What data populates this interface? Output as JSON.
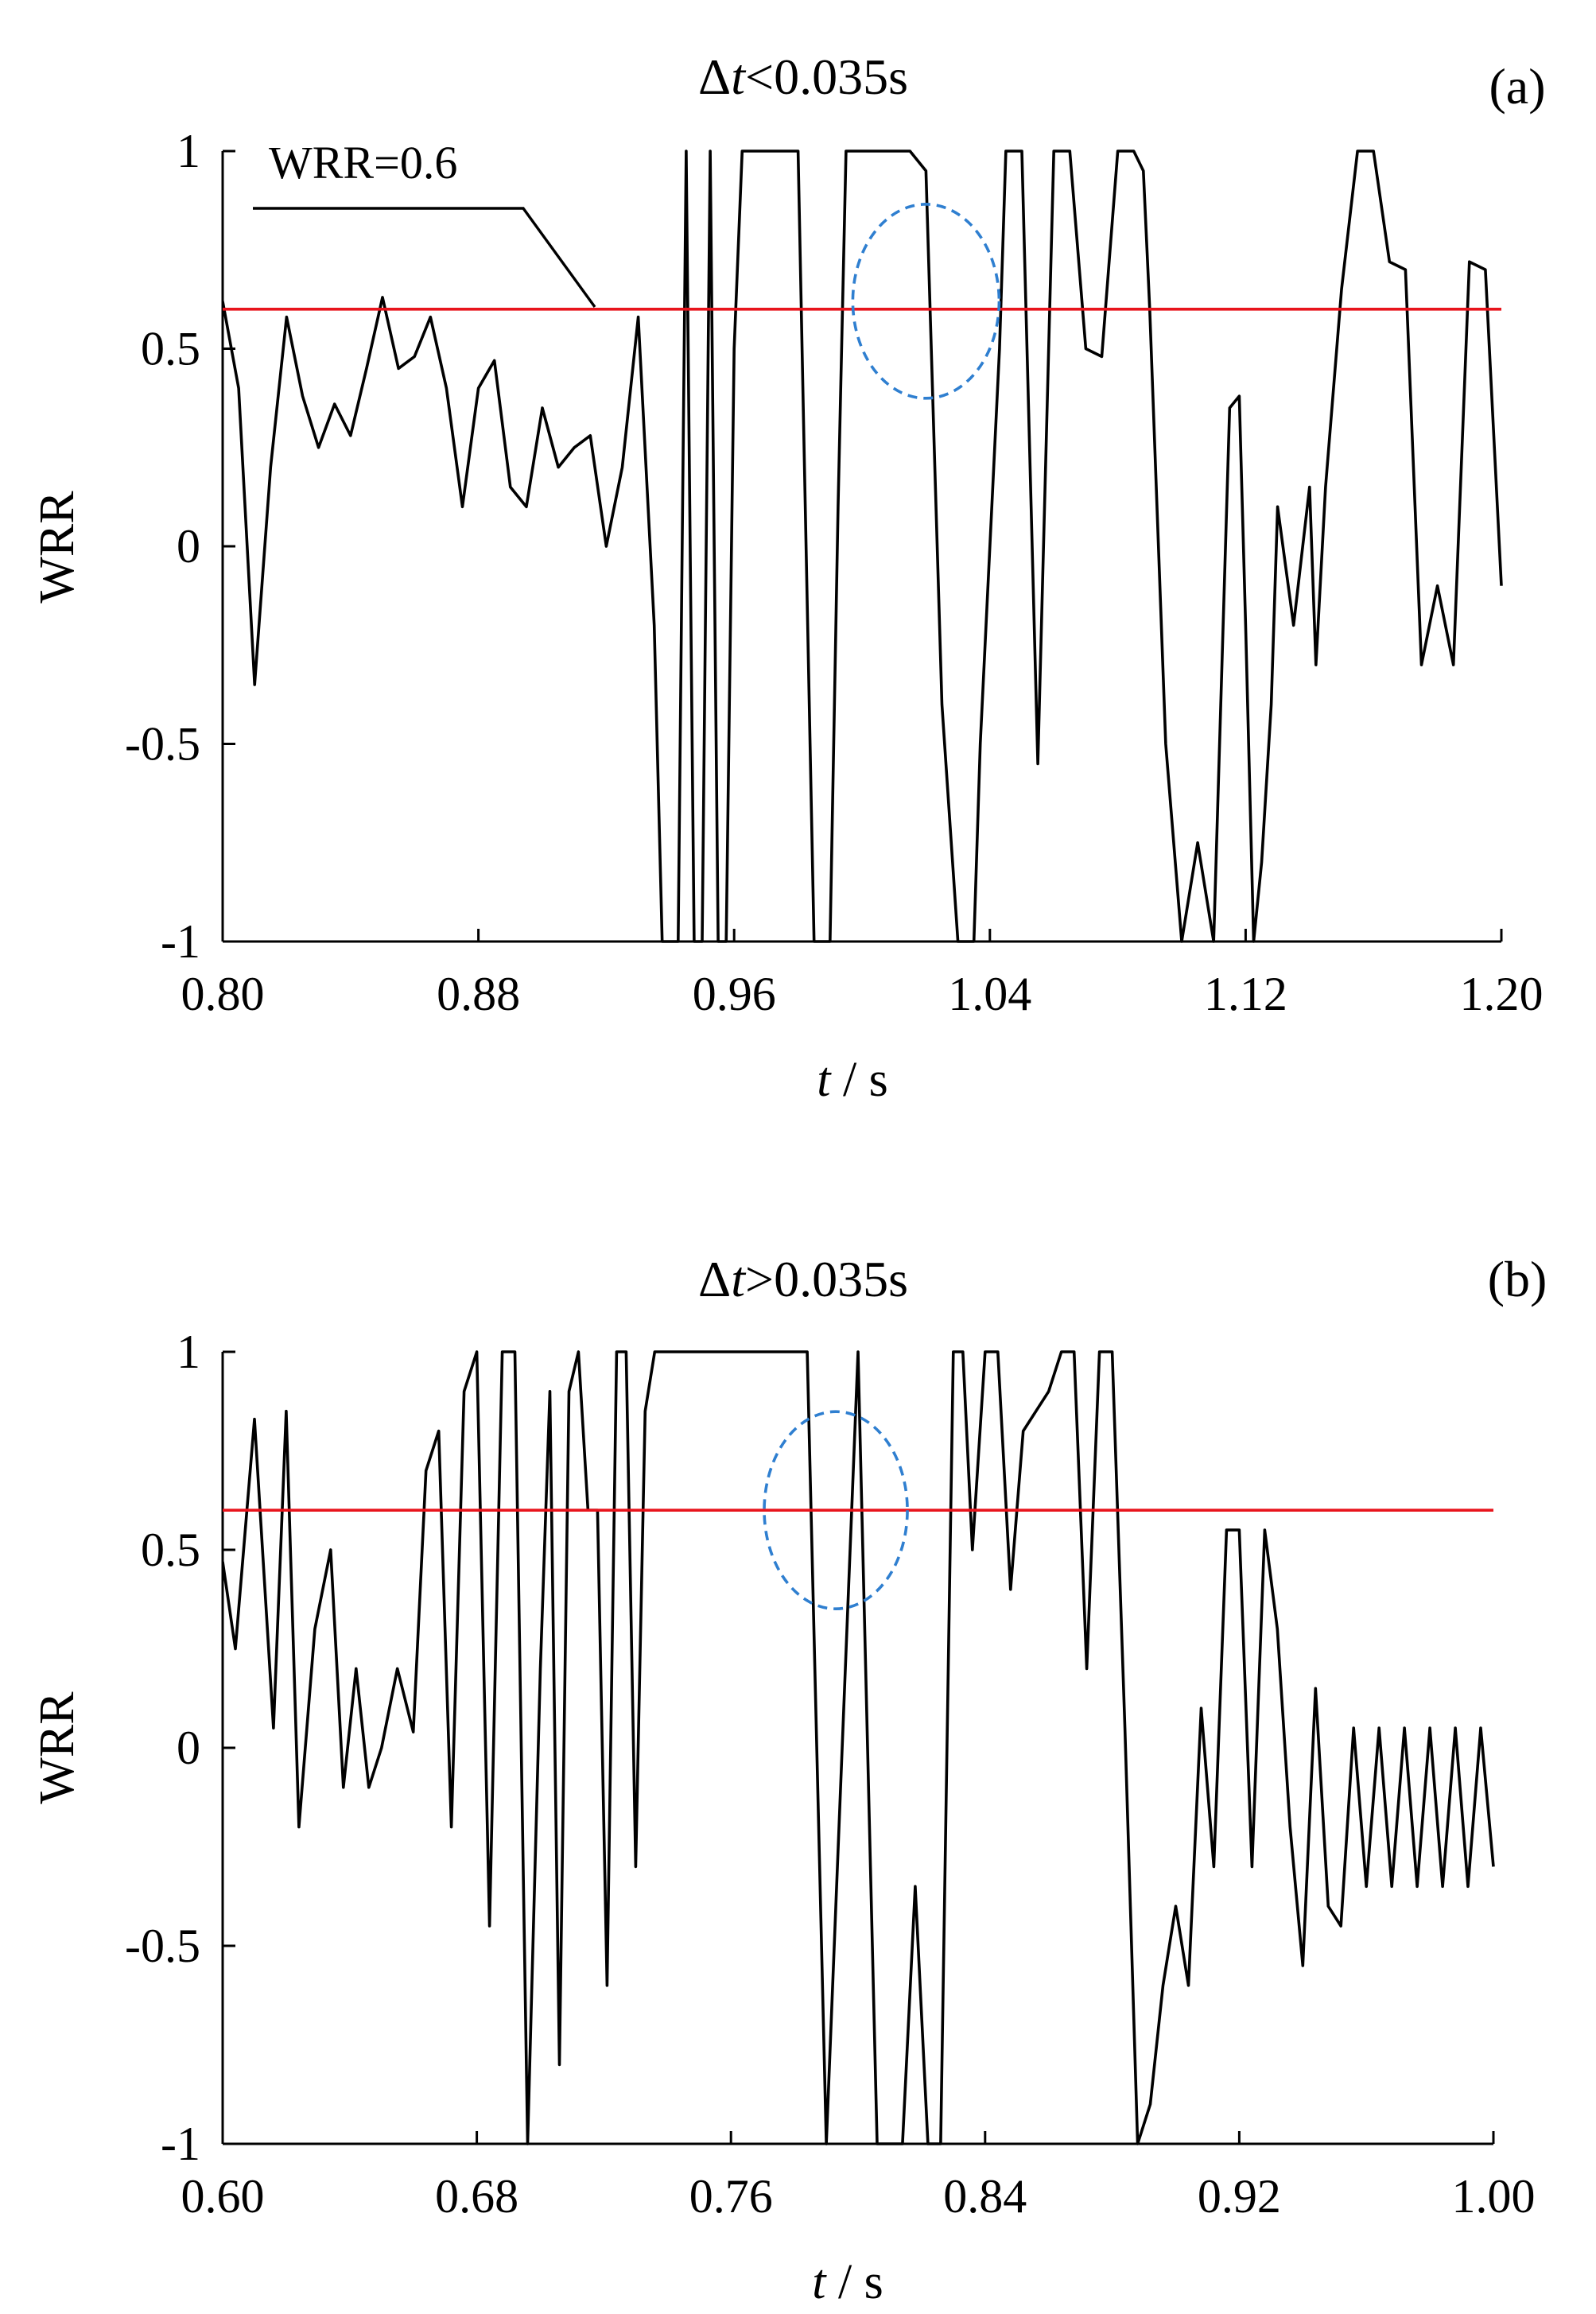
{
  "chart_data": [
    {
      "panel": "(a)",
      "type": "line",
      "title": "Δt<0.035s",
      "title_parts": {
        "delta": "Δ",
        "var": "t",
        "rest": "<0.035s"
      },
      "xlabel": "t / s",
      "xlabel_parts": {
        "var": "t",
        "unit": " / s"
      },
      "ylabel": "WRR",
      "xlim": [
        0.8,
        1.2
      ],
      "ylim": [
        -1,
        1
      ],
      "xticks": [
        "0.80",
        "0.88",
        "0.96",
        "1.04",
        "1.12",
        "1.20"
      ],
      "yticks": [
        "1",
        "0.5",
        "0",
        "-0.5",
        "-1"
      ],
      "grid": false,
      "threshold": {
        "value": 0.6,
        "color": "#e8141c"
      },
      "annotation": {
        "text": "WRR=0.6"
      },
      "highlight_ellipse": {
        "cx": 1.02,
        "cy": 0.62,
        "color": "#2f7fd0",
        "style": "dashed"
      },
      "series": [
        {
          "color": "#000000",
          "x": [
            0.8,
            0.805,
            0.81,
            0.815,
            0.82,
            0.825,
            0.83,
            0.835,
            0.84,
            0.845,
            0.85,
            0.855,
            0.86,
            0.865,
            0.87,
            0.875,
            0.88,
            0.885,
            0.89,
            0.895,
            0.9,
            0.905,
            0.91,
            0.915,
            0.92,
            0.925,
            0.93,
            0.935,
            0.9375,
            0.9425,
            0.945,
            0.9475,
            0.95,
            0.9525,
            0.955,
            0.9575,
            0.96,
            0.9625,
            0.965,
            0.97,
            0.975,
            0.98,
            0.985,
            0.99,
            0.9925,
            0.995,
            0.997,
            1.0,
            1.005,
            1.01,
            1.015,
            1.02,
            1.025,
            1.03,
            1.035,
            1.037,
            1.043,
            1.045,
            1.05,
            1.055,
            1.06,
            1.065,
            1.07,
            1.075,
            1.08,
            1.085,
            1.088,
            1.09,
            1.095,
            1.1,
            1.105,
            1.11,
            1.115,
            1.118,
            1.12,
            1.1225,
            1.125,
            1.128,
            1.13,
            1.135,
            1.14,
            1.142,
            1.145,
            1.15,
            1.155,
            1.16,
            1.165,
            1.17,
            1.175,
            1.18,
            1.185,
            1.19,
            1.195,
            1.2
          ],
          "y": [
            0.62,
            0.4,
            -0.35,
            0.2,
            0.58,
            0.38,
            0.25,
            0.36,
            0.28,
            0.45,
            0.63,
            0.45,
            0.48,
            0.58,
            0.4,
            0.1,
            0.4,
            0.47,
            0.15,
            0.1,
            0.35,
            0.2,
            0.25,
            0.28,
            0.0,
            0.2,
            0.58,
            -0.2,
            -1.0,
            -1.0,
            1.0,
            -1.0,
            -1.0,
            1.0,
            -1.0,
            -1.0,
            0.5,
            1.0,
            1.0,
            1.0,
            1.0,
            1.0,
            -1.0,
            -1.0,
            0.1,
            1.0,
            1.0,
            1.0,
            1.0,
            1.0,
            1.0,
            0.95,
            -0.4,
            -1.0,
            -1.0,
            -0.5,
            0.5,
            1.0,
            1.0,
            -0.55,
            1.0,
            1.0,
            0.5,
            0.48,
            1.0,
            1.0,
            0.95,
            0.6,
            -0.5,
            -1.0,
            -0.75,
            -1.0,
            0.35,
            0.38,
            -0.2,
            -1.0,
            -0.8,
            -0.4,
            0.1,
            -0.2,
            0.15,
            -0.3,
            0.15,
            0.65,
            1.0,
            1.0,
            0.72,
            0.7,
            -0.3,
            -0.1,
            -0.3,
            0.72,
            0.7,
            -0.1
          ]
        }
      ]
    },
    {
      "panel": "(b)",
      "type": "line",
      "title": "Δt>0.035s",
      "title_parts": {
        "delta": "Δ",
        "var": "t",
        "rest": ">0.035s"
      },
      "xlabel": "t / s",
      "xlabel_parts": {
        "var": "t",
        "unit": " / s"
      },
      "ylabel": "WRR",
      "xlim": [
        0.6,
        1.0
      ],
      "ylim": [
        -1,
        1
      ],
      "xticks": [
        "0.60",
        "0.68",
        "0.76",
        "0.84",
        "0.92",
        "1.00"
      ],
      "yticks": [
        "1",
        "0.5",
        "0",
        "-0.5",
        "-1"
      ],
      "grid": false,
      "threshold": {
        "value": 0.6,
        "color": "#e8141c"
      },
      "highlight_ellipse": {
        "cx": 0.793,
        "cy": 0.6,
        "color": "#2f7fd0",
        "style": "dashed"
      },
      "series": [
        {
          "color": "#000000",
          "x": [
            0.6,
            0.604,
            0.61,
            0.616,
            0.62,
            0.624,
            0.629,
            0.634,
            0.638,
            0.642,
            0.646,
            0.65,
            0.655,
            0.66,
            0.664,
            0.668,
            0.672,
            0.676,
            0.68,
            0.684,
            0.688,
            0.692,
            0.696,
            0.7,
            0.703,
            0.706,
            0.709,
            0.712,
            0.715,
            0.718,
            0.721,
            0.724,
            0.727,
            0.73,
            0.733,
            0.736,
            0.74,
            0.744,
            0.748,
            0.752,
            0.756,
            0.76,
            0.764,
            0.768,
            0.772,
            0.776,
            0.78,
            0.784,
            0.79,
            0.8,
            0.806,
            0.81,
            0.814,
            0.818,
            0.822,
            0.826,
            0.83,
            0.833,
            0.836,
            0.84,
            0.844,
            0.848,
            0.852,
            0.856,
            0.86,
            0.864,
            0.868,
            0.872,
            0.876,
            0.88,
            0.884,
            0.888,
            0.892,
            0.896,
            0.9,
            0.904,
            0.908,
            0.912,
            0.916,
            0.92,
            0.924,
            0.928,
            0.932,
            0.936,
            0.94,
            0.944,
            0.948,
            0.952,
            0.956,
            0.96,
            0.964,
            0.968,
            0.972,
            0.976,
            0.98,
            0.984,
            0.988,
            0.992,
            0.996,
            1.0
          ],
          "y": [
            0.47,
            0.25,
            0.83,
            0.05,
            0.85,
            -0.2,
            0.3,
            0.5,
            -0.1,
            0.2,
            -0.1,
            0.0,
            0.2,
            0.04,
            0.7,
            0.8,
            -0.2,
            0.9,
            1.0,
            -0.45,
            1.0,
            1.0,
            -1.0,
            0.2,
            0.9,
            -0.8,
            0.9,
            1.0,
            0.6,
            0.6,
            -0.6,
            1.0,
            1.0,
            -0.3,
            0.85,
            1.0,
            1.0,
            1.0,
            1.0,
            1.0,
            1.0,
            1.0,
            1.0,
            1.0,
            1.0,
            1.0,
            1.0,
            1.0,
            -1.0,
            1.0,
            -1.0,
            -1.0,
            -1.0,
            -0.35,
            -1.0,
            -1.0,
            1.0,
            1.0,
            0.5,
            1.0,
            1.0,
            0.4,
            0.8,
            0.85,
            0.9,
            1.0,
            1.0,
            0.2,
            1.0,
            1.0,
            0.05,
            -1.0,
            -0.9,
            -0.6,
            -0.4,
            -0.6,
            0.1,
            -0.3,
            0.55,
            0.55,
            -0.3,
            0.55,
            0.3,
            -0.2,
            -0.55,
            0.15,
            -0.4,
            -0.45,
            0.05,
            -0.35,
            0.05,
            -0.35,
            0.05,
            -0.35,
            0.05,
            -0.35,
            0.05,
            -0.35,
            0.05,
            -0.3
          ]
        }
      ]
    }
  ]
}
